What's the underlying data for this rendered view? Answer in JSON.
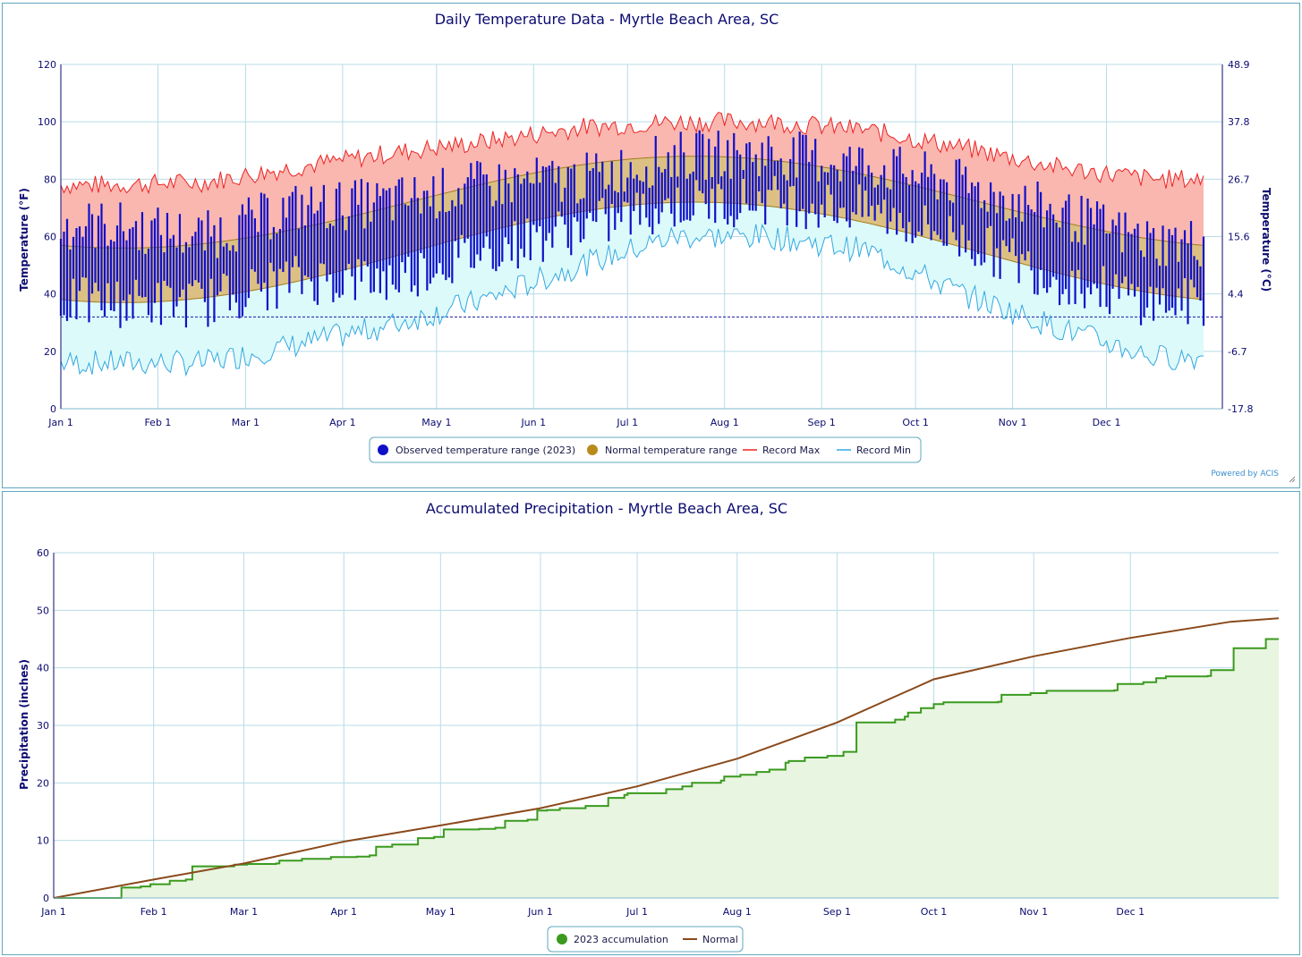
{
  "chart_data": [
    {
      "type": "line",
      "title": "Daily Temperature Data - Myrtle Beach Area, SC",
      "ylabel": "Temperature (°F)",
      "ylabel_right": "Temperature (°C)",
      "ylim": [
        0,
        120
      ],
      "yticks": [
        "0",
        "20",
        "40",
        "60",
        "80",
        "100",
        "120"
      ],
      "yticks_right": [
        "-17.8",
        "-6.7",
        "4.4",
        "15.6",
        "26.7",
        "37.8",
        "48.9"
      ],
      "months": [
        "Jan 1",
        "Feb 1",
        "Mar 1",
        "Apr 1",
        "May 1",
        "Jun 1",
        "Jul 1",
        "Aug 1",
        "Sep 1",
        "Oct 1",
        "Nov 1",
        "Dec 1"
      ],
      "freezing_line": 32,
      "grid": true,
      "legend_position": "bottom",
      "series": [
        {
          "name": "Observed temperature range (2023)",
          "color": "#1010c8",
          "monthly_high": [
            64,
            60,
            70,
            72,
            78,
            80,
            88,
            89,
            85,
            78,
            68,
            58
          ],
          "monthly_low": [
            40,
            40,
            48,
            48,
            58,
            66,
            74,
            76,
            72,
            62,
            48,
            40
          ]
        },
        {
          "name": "Normal temperature range",
          "color": "#b98a1a",
          "normal_high_min": 56,
          "normal_high_max": 88,
          "normal_low_min": 37,
          "normal_low_max": 72
        },
        {
          "name": "Record Max",
          "color": "#ee2222",
          "monthly_values": [
            78,
            79,
            84,
            89,
            93,
            98,
            100,
            100,
            97,
            91,
            84,
            80
          ]
        },
        {
          "name": "Record Min",
          "color": "#33a8e0",
          "monthly_values": [
            16,
            16,
            22,
            29,
            38,
            50,
            60,
            60,
            55,
            40,
            28,
            18
          ]
        }
      ],
      "credit": "Powered by ACIS"
    },
    {
      "type": "line",
      "title": "Accumulated Precipitation - Myrtle Beach Area, SC",
      "ylabel": "Precipitation (inches)",
      "ylim": [
        0,
        60
      ],
      "yticks": [
        "0",
        "10",
        "20",
        "30",
        "40",
        "50",
        "60"
      ],
      "months": [
        "Jan 1",
        "Feb 1",
        "Mar 1",
        "Apr 1",
        "May 1",
        "Jun 1",
        "Jul 1",
        "Aug 1",
        "Sep 1",
        "Oct 1",
        "Nov 1",
        "Dec 1"
      ],
      "grid": true,
      "legend_position": "bottom",
      "series": [
        {
          "name": "2023 accumulation",
          "color": "#3a9a1e",
          "points": [
            [
              0,
              0
            ],
            [
              20,
              0
            ],
            [
              21,
              1.8
            ],
            [
              27,
              2
            ],
            [
              30,
              2.4
            ],
            [
              36,
              3
            ],
            [
              41,
              3.2
            ],
            [
              43,
              5.5
            ],
            [
              56,
              5.8
            ],
            [
              60,
              5.9
            ],
            [
              69,
              6
            ],
            [
              70,
              6.5
            ],
            [
              77,
              6.8
            ],
            [
              86,
              7.1
            ],
            [
              94,
              7.2
            ],
            [
              98,
              7.4
            ],
            [
              100,
              8.9
            ],
            [
              105,
              9.3
            ],
            [
              113,
              10.4
            ],
            [
              118,
              10.6
            ],
            [
              121,
              11.9
            ],
            [
              132,
              12
            ],
            [
              137,
              12.2
            ],
            [
              140,
              13.4
            ],
            [
              147,
              13.6
            ],
            [
              150,
              15.2
            ],
            [
              153,
              15.3
            ],
            [
              157,
              15.6
            ],
            [
              165,
              16
            ],
            [
              172,
              17.4
            ],
            [
              177,
              17.9
            ],
            [
              178,
              18.2
            ],
            [
              190,
              18.9
            ],
            [
              195,
              19.4
            ],
            [
              198,
              20
            ],
            [
              207,
              20.4
            ],
            [
              208,
              21.1
            ],
            [
              213,
              21.4
            ],
            [
              218,
              21.9
            ],
            [
              222,
              22.3
            ],
            [
              227,
              23.5
            ],
            [
              228,
              23.8
            ],
            [
              233,
              24.4
            ],
            [
              240,
              24.7
            ],
            [
              245,
              25.4
            ],
            [
              245,
              25.4
            ],
            [
              248,
              25.4
            ],
            [
              249,
              30.5
            ],
            [
              259,
              30.5
            ],
            [
              261,
              31
            ],
            [
              264,
              31.5
            ],
            [
              265,
              32.2
            ],
            [
              269,
              33
            ],
            [
              273,
              33.7
            ],
            [
              276,
              34
            ],
            [
              293,
              34.1
            ],
            [
              294,
              35.3
            ],
            [
              303,
              35.6
            ],
            [
              308,
              36
            ],
            [
              329,
              36.1
            ],
            [
              330,
              37.2
            ],
            [
              338,
              37.5
            ],
            [
              342,
              38.2
            ],
            [
              345,
              38.5
            ],
            [
              358,
              38.6
            ],
            [
              359,
              39.6
            ],
            [
              365,
              39.6
            ],
            [
              366,
              43.4
            ],
            [
              373,
              43.4
            ],
            [
              376,
              45
            ],
            [
              380,
              45
            ]
          ]
        },
        {
          "name": "Normal",
          "color": "#8a4a1c",
          "points": [
            [
              0,
              0
            ],
            [
              31,
              3.2
            ],
            [
              59,
              6
            ],
            [
              90,
              9.8
            ],
            [
              120,
              12.6
            ],
            [
              151,
              15.6
            ],
            [
              181,
              19.4
            ],
            [
              212,
              24.2
            ],
            [
              243,
              30.5
            ],
            [
              273,
              38
            ],
            [
              304,
              42
            ],
            [
              334,
              45.2
            ],
            [
              365,
              48
            ],
            [
              380,
              48.6
            ]
          ]
        }
      ]
    }
  ]
}
